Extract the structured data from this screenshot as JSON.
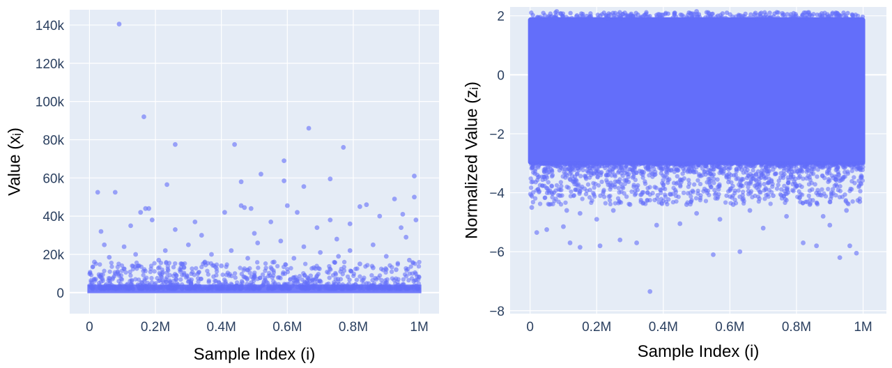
{
  "chart_data": [
    {
      "type": "scatter",
      "xlabel": "Sample Index (i)",
      "ylabel": "Value (xᵢ)",
      "xlim": [
        -0.06,
        1.06
      ],
      "ylim": [
        -11000,
        148000
      ],
      "xticks": [
        0,
        0.2,
        0.4,
        0.6,
        0.8,
        1.0
      ],
      "xtick_labels": [
        "0",
        "0.2M",
        "0.4M",
        "0.6M",
        "0.8M",
        "1M"
      ],
      "yticks": [
        0,
        20000,
        40000,
        60000,
        80000,
        100000,
        120000,
        140000
      ],
      "ytick_labels": [
        "0",
        "20k",
        "40k",
        "60k",
        "80k",
        "100k",
        "120k",
        "140k"
      ],
      "grid": true,
      "marker_color": "#636efa",
      "x_units": "millions of samples",
      "dense_band": {
        "x": [
          0,
          1.0
        ],
        "y": [
          0,
          5000
        ]
      },
      "points": [
        [
          0.09,
          140500
        ],
        [
          0.165,
          92000
        ],
        [
          0.26,
          77500
        ],
        [
          0.44,
          77500
        ],
        [
          0.665,
          86000
        ],
        [
          0.77,
          76000
        ],
        [
          0.59,
          69000
        ],
        [
          0.52,
          62000
        ],
        [
          0.46,
          58000
        ],
        [
          0.59,
          58500
        ],
        [
          0.73,
          59500
        ],
        [
          0.985,
          61000
        ],
        [
          0.985,
          50000
        ],
        [
          0.65,
          55500
        ],
        [
          0.235,
          56500
        ],
        [
          0.025,
          52500
        ],
        [
          0.078,
          52500
        ],
        [
          0.925,
          49000
        ],
        [
          0.46,
          45500
        ],
        [
          0.47,
          44500
        ],
        [
          0.49,
          44000
        ],
        [
          0.17,
          44000
        ],
        [
          0.18,
          44000
        ],
        [
          0.155,
          42000
        ],
        [
          0.6,
          45500
        ],
        [
          0.84,
          46000
        ],
        [
          0.82,
          45000
        ],
        [
          0.19,
          38000
        ],
        [
          0.32,
          37000
        ],
        [
          0.55,
          37000
        ],
        [
          0.73,
          38000
        ],
        [
          0.88,
          40000
        ],
        [
          0.95,
          41000
        ],
        [
          0.125,
          35000
        ],
        [
          0.41,
          42000
        ],
        [
          0.63,
          42000
        ],
        [
          0.26,
          33000
        ],
        [
          0.035,
          32000
        ],
        [
          0.5,
          31000
        ],
        [
          0.69,
          34000
        ],
        [
          0.945,
          34000
        ],
        [
          0.79,
          36000
        ],
        [
          0.99,
          38000
        ],
        [
          0.34,
          30000
        ],
        [
          0.58,
          27000
        ],
        [
          0.045,
          25000
        ],
        [
          0.105,
          24000
        ],
        [
          0.3,
          25000
        ],
        [
          0.51,
          26000
        ],
        [
          0.65,
          24000
        ],
        [
          0.75,
          28000
        ],
        [
          0.86,
          25000
        ],
        [
          0.96,
          29000
        ],
        [
          0.37,
          20000
        ],
        [
          0.7,
          21000
        ],
        [
          0.9,
          19000
        ],
        [
          0.14,
          20000
        ],
        [
          0.06,
          18500
        ],
        [
          0.43,
          22000
        ],
        [
          0.79,
          22000
        ],
        [
          0.21,
          17000
        ],
        [
          0.28,
          15000
        ],
        [
          0.56,
          16000
        ],
        [
          0.62,
          18000
        ],
        [
          0.82,
          15000
        ],
        [
          0.97,
          17000
        ],
        [
          0.4,
          14000
        ],
        [
          0.015,
          16000
        ],
        [
          0.755,
          19000
        ],
        [
          0.68,
          13000
        ],
        [
          0.23,
          22000
        ],
        [
          0.35,
          16000
        ],
        [
          0.48,
          18000
        ],
        [
          0.86,
          13000
        ],
        [
          0.93,
          12000
        ]
      ]
    },
    {
      "type": "scatter",
      "xlabel": "Sample Index (i)",
      "ylabel": "Normalized Value (zᵢ)",
      "xlim": [
        -0.06,
        1.07
      ],
      "ylim": [
        -8.1,
        2.3
      ],
      "xticks": [
        0,
        0.2,
        0.4,
        0.6,
        0.8,
        1.0
      ],
      "xtick_labels": [
        "0",
        "0.2M",
        "0.4M",
        "0.6M",
        "0.8M",
        "1M"
      ],
      "yticks": [
        -8,
        -6,
        -4,
        -2,
        0,
        2
      ],
      "ytick_labels": [
        "−8",
        "−6",
        "−4",
        "−2",
        "0",
        "2"
      ],
      "grid": true,
      "marker_color": "#636efa",
      "x_units": "millions of samples",
      "dense_band": {
        "x": [
          0,
          1.0
        ],
        "y": [
          -3.3,
          2.0
        ]
      },
      "points": [
        [
          0.36,
          -7.35
        ],
        [
          0.93,
          -6.2
        ],
        [
          0.55,
          -6.1
        ],
        [
          0.63,
          -6.0
        ],
        [
          0.98,
          -6.05
        ],
        [
          0.21,
          -5.8
        ],
        [
          0.15,
          -5.85
        ],
        [
          0.86,
          -5.8
        ],
        [
          0.96,
          -5.8
        ],
        [
          0.12,
          -5.7
        ],
        [
          0.32,
          -5.7
        ],
        [
          0.27,
          -5.6
        ],
        [
          0.82,
          -5.7
        ],
        [
          0.02,
          -5.35
        ],
        [
          0.05,
          -5.25
        ],
        [
          0.1,
          -5.15
        ],
        [
          0.38,
          -5.1
        ],
        [
          0.45,
          -5.05
        ],
        [
          0.7,
          -5.2
        ],
        [
          0.9,
          -5.1
        ],
        [
          0.2,
          -4.9
        ],
        [
          0.57,
          -4.9
        ],
        [
          0.77,
          -4.8
        ],
        [
          0.15,
          -4.7
        ],
        [
          0.25,
          -4.6
        ],
        [
          0.5,
          -4.7
        ],
        [
          0.95,
          -4.6
        ],
        [
          0.3,
          -4.4
        ],
        [
          0.61,
          -4.4
        ],
        [
          0.84,
          -4.4
        ],
        [
          0.09,
          -4.1
        ],
        [
          0.64,
          -4.2
        ],
        [
          0.42,
          -4.05
        ],
        [
          0.73,
          -4.1
        ],
        [
          0.99,
          -4.3
        ],
        [
          0.005,
          -4.5
        ],
        [
          0.11,
          -4.6
        ],
        [
          0.47,
          -4.4
        ],
        [
          0.66,
          -4.6
        ],
        [
          0.88,
          -4.8
        ],
        [
          0.08,
          2.15
        ],
        [
          0.5,
          2.15
        ]
      ]
    }
  ]
}
